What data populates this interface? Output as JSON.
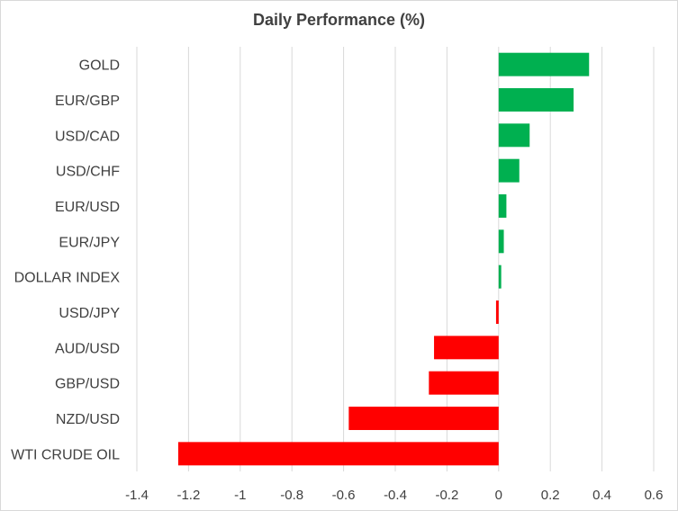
{
  "chart_data": {
    "type": "bar",
    "orientation": "horizontal",
    "title": "Daily Performance  (%)",
    "xlabel": "",
    "ylabel": "",
    "categories": [
      "GOLD",
      "EUR/GBP",
      "USD/CAD",
      "USD/CHF",
      "EUR/USD",
      "EUR/JPY",
      "DOLLAR INDEX",
      "USD/JPY",
      "AUD/USD",
      "GBP/USD",
      "NZD/USD",
      "WTI CRUDE OIL"
    ],
    "values": [
      0.35,
      0.29,
      0.12,
      0.08,
      0.03,
      0.02,
      0.01,
      -0.01,
      -0.25,
      -0.27,
      -0.58,
      -1.24
    ],
    "xlim": [
      -1.4,
      0.6
    ],
    "ticks": [
      -1.4,
      -1.2,
      -1,
      -0.8,
      -0.6,
      -0.4,
      -0.2,
      0,
      0.2,
      0.4,
      0.6
    ],
    "tick_labels": [
      "-1.4",
      "-1.2",
      "-1",
      "-0.8",
      "-0.6",
      "-0.4",
      "-0.2",
      "0",
      "0.2",
      "0.4",
      "0.6"
    ],
    "grid": "vertical",
    "legend": "none",
    "colors": {
      "positive": "#00b050",
      "negative": "#ff0000",
      "grid": "#d9d9d9",
      "text": "#404040"
    }
  }
}
